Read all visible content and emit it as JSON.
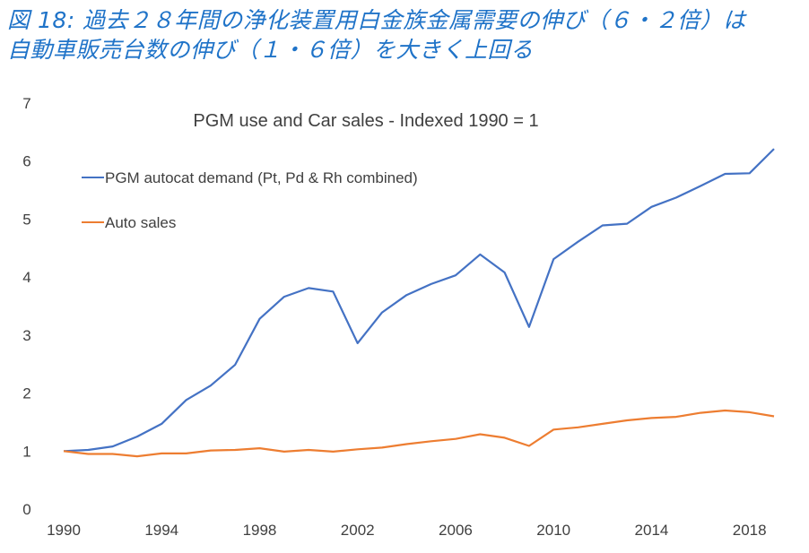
{
  "caption": {
    "line1": "図 18: 過去２８年間の浄化装置用白金族金属需要の伸び（６・２倍）は",
    "line2": "自動車販売台数の伸び（１・６倍）を大きく上回る"
  },
  "chart_data": {
    "type": "line",
    "title": "PGM use and Car sales - Indexed 1990 = 1",
    "xlabel": "",
    "ylabel": "",
    "ylim": [
      0,
      7
    ],
    "xlim": [
      1990,
      2019
    ],
    "yticks": [
      0,
      1,
      2,
      3,
      4,
      5,
      6,
      7
    ],
    "xticks": [
      1990,
      1994,
      1998,
      2002,
      2006,
      2010,
      2014,
      2018
    ],
    "grid": false,
    "legend_position": "top-left",
    "x": [
      1990,
      1991,
      1992,
      1993,
      1994,
      1995,
      1996,
      1997,
      1998,
      1999,
      2000,
      2001,
      2002,
      2003,
      2004,
      2005,
      2006,
      2007,
      2008,
      2009,
      2010,
      2011,
      2012,
      2013,
      2014,
      2015,
      2016,
      2017,
      2018,
      2019
    ],
    "series": [
      {
        "name": "PGM autocat demand (Pt, Pd & Rh combined)",
        "color": "#4472c4",
        "values": [
          1.0,
          1.02,
          1.08,
          1.25,
          1.47,
          1.88,
          2.13,
          2.49,
          3.28,
          3.66,
          3.81,
          3.75,
          2.86,
          3.39,
          3.69,
          3.88,
          4.03,
          4.39,
          4.08,
          3.14,
          4.31,
          4.61,
          4.89,
          4.92,
          5.21,
          5.37,
          5.57,
          5.78,
          5.79,
          6.21
        ]
      },
      {
        "name": "Auto sales",
        "color": "#ed7d31",
        "values": [
          1.0,
          0.95,
          0.95,
          0.91,
          0.96,
          0.96,
          1.01,
          1.02,
          1.05,
          0.99,
          1.02,
          0.99,
          1.03,
          1.06,
          1.12,
          1.17,
          1.21,
          1.29,
          1.23,
          1.09,
          1.37,
          1.41,
          1.47,
          1.53,
          1.57,
          1.59,
          1.66,
          1.7,
          1.67,
          1.6
        ]
      }
    ]
  }
}
